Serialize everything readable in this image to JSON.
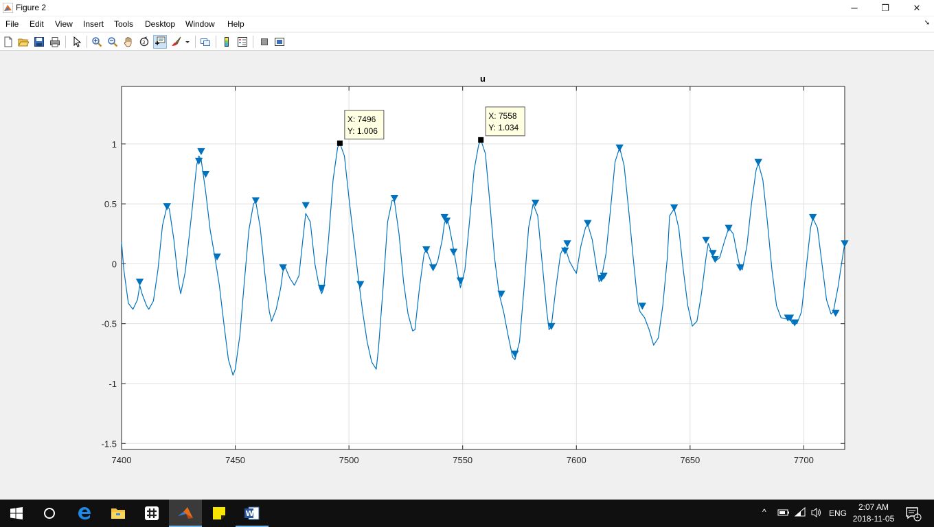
{
  "window": {
    "title": "Figure 2",
    "minimize": "─",
    "restore": "❐",
    "close": "✕"
  },
  "menu": [
    "File",
    "Edit",
    "View",
    "Insert",
    "Tools",
    "Desktop",
    "Window",
    "Help"
  ],
  "toolbar": {
    "tools": [
      "new-figure-icon",
      "open-file-icon",
      "save-icon",
      "print-icon",
      "edit-plot-icon",
      "zoom-in-icon",
      "zoom-out-icon",
      "pan-icon",
      "rotate-3d-icon",
      "data-cursor-icon",
      "brush-icon",
      "link-plot-icon",
      "colorbar-icon",
      "legend-icon",
      "hide-plot-tools-icon",
      "show-plot-tools-icon"
    ],
    "active": "data-cursor-icon"
  },
  "chart_data": {
    "type": "line",
    "title": "u",
    "xlabel": "",
    "ylabel": "",
    "xlim": [
      7400,
      7718
    ],
    "ylim": [
      -1.55,
      1.48
    ],
    "xticks": [
      7400,
      7450,
      7500,
      7550,
      7600,
      7650,
      7700
    ],
    "yticks": [
      1,
      0.5,
      0,
      -0.5,
      -1,
      -1.5
    ],
    "grid": true,
    "line_color": "#0072bd",
    "series": [
      {
        "x": [
          7400,
          7401,
          7403,
          7405,
          7407,
          7408,
          7409,
          7411,
          7412,
          7414,
          7416,
          7418,
          7420,
          7421,
          7423,
          7425,
          7426,
          7428,
          7431,
          7433,
          7434,
          7435,
          7437,
          7439,
          7441,
          7443,
          7445,
          7447,
          7449,
          7450,
          7452,
          7454,
          7456,
          7458,
          7459,
          7461,
          7463,
          7465,
          7466,
          7468,
          7470,
          7471,
          7472,
          7474,
          7476,
          7478,
          7480,
          7481,
          7483,
          7485,
          7487,
          7488,
          7489,
          7491,
          7493,
          7495,
          7496,
          7498,
          7500,
          7502,
          7504,
          7506,
          7508,
          7510,
          7512,
          7513,
          7515,
          7517,
          7519,
          7520,
          7522,
          7524,
          7526,
          7528,
          7529,
          7531,
          7533,
          7534,
          7536,
          7537,
          7539,
          7541,
          7542,
          7543,
          7544,
          7546,
          7548,
          7549,
          7551,
          7553,
          7555,
          7557,
          7558,
          7560,
          7562,
          7564,
          7566,
          7568,
          7570,
          7572,
          7573,
          7575,
          7577,
          7579,
          7581,
          7583,
          7585,
          7587,
          7588,
          7589,
          7591,
          7593,
          7594,
          7595,
          7597,
          7599,
          7600,
          7602,
          7604,
          7605,
          7607,
          7609,
          7610,
          7611,
          7613,
          7615,
          7617,
          7619,
          7621,
          7623,
          7625,
          7627,
          7628,
          7630,
          7632,
          7634,
          7636,
          7638,
          7640,
          7641,
          7643,
          7645,
          7647,
          7649,
          7651,
          7653,
          7655,
          7657,
          7658,
          7659,
          7660,
          7661,
          7663,
          7665,
          7667,
          7669,
          7671,
          7672,
          7673,
          7675,
          7677,
          7679,
          7680,
          7682,
          7684,
          7686,
          7688,
          7690,
          7692,
          7694,
          7695,
          7697,
          7699,
          7701,
          7703,
          7704,
          7706,
          7708,
          7710,
          7712,
          7713,
          7715,
          7717,
          7718
        ],
        "y": [
          0.18,
          -0.05,
          -0.33,
          -0.38,
          -0.3,
          -0.18,
          -0.25,
          -0.35,
          -0.38,
          -0.31,
          -0.05,
          0.32,
          0.48,
          0.46,
          0.2,
          -0.15,
          -0.25,
          -0.07,
          0.45,
          0.82,
          0.9,
          0.87,
          0.6,
          0.28,
          0.06,
          -0.18,
          -0.5,
          -0.8,
          -0.93,
          -0.88,
          -0.6,
          -0.15,
          0.28,
          0.5,
          0.52,
          0.3,
          -0.08,
          -0.4,
          -0.48,
          -0.38,
          -0.2,
          -0.06,
          -0.03,
          -0.12,
          -0.18,
          -0.1,
          0.25,
          0.42,
          0.35,
          0.0,
          -0.2,
          -0.25,
          -0.2,
          0.2,
          0.7,
          0.97,
          1.006,
          0.9,
          0.55,
          0.22,
          -0.1,
          -0.4,
          -0.65,
          -0.82,
          -0.88,
          -0.7,
          -0.2,
          0.35,
          0.53,
          0.52,
          0.25,
          -0.15,
          -0.42,
          -0.56,
          -0.55,
          -0.2,
          0.08,
          0.12,
          0.02,
          -0.05,
          0.02,
          0.2,
          0.34,
          0.38,
          0.32,
          0.12,
          -0.1,
          -0.2,
          -0.05,
          0.35,
          0.78,
          0.99,
          1.034,
          0.92,
          0.5,
          0.05,
          -0.25,
          -0.4,
          -0.6,
          -0.78,
          -0.8,
          -0.65,
          -0.2,
          0.3,
          0.5,
          0.4,
          0.0,
          -0.4,
          -0.55,
          -0.52,
          -0.2,
          0.08,
          0.12,
          0.14,
          0.02,
          -0.05,
          -0.08,
          0.15,
          0.3,
          0.33,
          0.2,
          -0.05,
          -0.15,
          -0.12,
          0.08,
          0.45,
          0.85,
          0.97,
          0.82,
          0.45,
          0.05,
          -0.33,
          -0.4,
          -0.45,
          -0.55,
          -0.68,
          -0.62,
          -0.35,
          0.05,
          0.4,
          0.46,
          0.3,
          -0.05,
          -0.35,
          -0.52,
          -0.48,
          -0.25,
          0.05,
          0.17,
          0.12,
          0.06,
          0.02,
          0.05,
          0.18,
          0.3,
          0.25,
          0.05,
          -0.03,
          -0.05,
          0.15,
          0.5,
          0.78,
          0.84,
          0.7,
          0.35,
          -0.05,
          -0.35,
          -0.45,
          -0.46,
          -0.46,
          -0.5,
          -0.5,
          -0.4,
          -0.05,
          0.3,
          0.38,
          0.3,
          0.0,
          -0.3,
          -0.42,
          -0.4,
          -0.2,
          0.05,
          0.17
        ]
      }
    ],
    "markers": [
      {
        "x": 7408,
        "y": -0.15
      },
      {
        "x": 7420,
        "y": 0.48
      },
      {
        "x": 7434,
        "y": 0.86
      },
      {
        "x": 7435,
        "y": 0.94
      },
      {
        "x": 7437,
        "y": 0.75
      },
      {
        "x": 7442,
        "y": 0.06
      },
      {
        "x": 7459,
        "y": 0.53
      },
      {
        "x": 7471,
        "y": -0.03
      },
      {
        "x": 7481,
        "y": 0.49
      },
      {
        "x": 7488,
        "y": -0.2
      },
      {
        "x": 7505,
        "y": -0.17
      },
      {
        "x": 7520,
        "y": 0.55
      },
      {
        "x": 7534,
        "y": 0.12
      },
      {
        "x": 7537,
        "y": -0.03
      },
      {
        "x": 7542,
        "y": 0.39
      },
      {
        "x": 7543,
        "y": 0.36
      },
      {
        "x": 7546,
        "y": 0.1
      },
      {
        "x": 7549,
        "y": -0.14
      },
      {
        "x": 7567,
        "y": -0.25
      },
      {
        "x": 7573,
        "y": -0.75
      },
      {
        "x": 7582,
        "y": 0.51
      },
      {
        "x": 7589,
        "y": -0.52
      },
      {
        "x": 7595,
        "y": 0.11
      },
      {
        "x": 7596,
        "y": 0.17
      },
      {
        "x": 7605,
        "y": 0.34
      },
      {
        "x": 7611,
        "y": -0.12
      },
      {
        "x": 7612,
        "y": -0.1
      },
      {
        "x": 7619,
        "y": 0.97
      },
      {
        "x": 7629,
        "y": -0.35
      },
      {
        "x": 7643,
        "y": 0.47
      },
      {
        "x": 7657,
        "y": 0.2
      },
      {
        "x": 7660,
        "y": 0.09
      },
      {
        "x": 7661,
        "y": 0.04
      },
      {
        "x": 7667,
        "y": 0.3
      },
      {
        "x": 7672,
        "y": -0.03
      },
      {
        "x": 7680,
        "y": 0.85
      },
      {
        "x": 7693,
        "y": -0.45
      },
      {
        "x": 7694,
        "y": -0.45
      },
      {
        "x": 7696,
        "y": -0.49
      },
      {
        "x": 7704,
        "y": 0.39
      },
      {
        "x": 7714,
        "y": -0.41
      },
      {
        "x": 7718,
        "y": 0.17
      }
    ],
    "datatips": [
      {
        "x": 7496,
        "y": 1.006,
        "label_x": "X: 7496",
        "label_y": "Y: 1.006"
      },
      {
        "x": 7558,
        "y": 1.034,
        "label_x": "X: 7558",
        "label_y": "Y: 1.034"
      }
    ]
  },
  "taskbar": {
    "apps": [
      "windows-start-icon",
      "cortana-search-icon",
      "edge-browser-icon",
      "file-explorer-icon",
      "slack-icon",
      "matlab-icon",
      "sticky-notes-icon",
      "word-icon"
    ],
    "active": "matlab-icon",
    "language": "ENG",
    "time": "2:07 AM",
    "date": "2018-11-05",
    "notification_count": "1"
  }
}
